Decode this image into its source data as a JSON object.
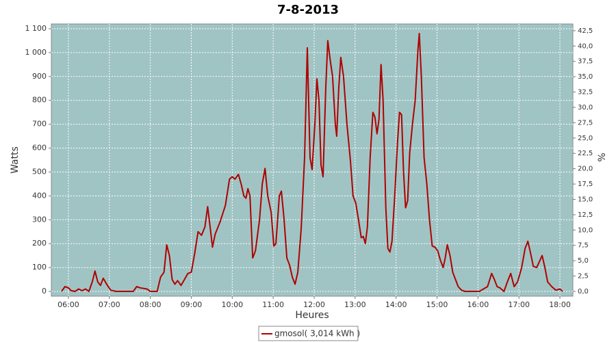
{
  "chart_data": {
    "type": "line",
    "title": "7-8-2013",
    "x_label": "Heures",
    "y_label": "Watts",
    "y2_label": "%",
    "xlim": [
      "05:35",
      "18:19"
    ],
    "xticks": [
      "06:00",
      "07:00",
      "08:00",
      "09:00",
      "10:00",
      "11:00",
      "12:00",
      "13:00",
      "14:00",
      "15:00",
      "16:00",
      "17:00",
      "18:00"
    ],
    "ylim": [
      -20,
      1120
    ],
    "yticks": [
      0,
      100,
      200,
      300,
      400,
      500,
      600,
      700,
      800,
      900,
      {
        "value": 1000,
        "label": "1 000"
      },
      {
        "value": 1100,
        "label": "1 100"
      }
    ],
    "y2lim": [
      -0.78,
      43.6
    ],
    "y2ticks": [
      {
        "value": 0,
        "label": "0,0"
      },
      {
        "value": 2.5,
        "label": "2,5"
      },
      {
        "value": 5,
        "label": "5,0"
      },
      {
        "value": 7.5,
        "label": "7,5"
      },
      {
        "value": 10,
        "label": "10,0"
      },
      {
        "value": 12.5,
        "label": "12,5"
      },
      {
        "value": 15,
        "label": "15,0"
      },
      {
        "value": 17.5,
        "label": "17,5"
      },
      {
        "value": 20,
        "label": "20,0"
      },
      {
        "value": 22.5,
        "label": "22,5"
      },
      {
        "value": 25,
        "label": "25,0"
      },
      {
        "value": 27.5,
        "label": "27,5"
      },
      {
        "value": 30,
        "label": "30,0"
      },
      {
        "value": 32.5,
        "label": "32,5"
      },
      {
        "value": 35,
        "label": "35,0"
      },
      {
        "value": 37.5,
        "label": "37,5"
      },
      {
        "value": 40,
        "label": "40,0"
      },
      {
        "value": 42.5,
        "label": "42,5"
      }
    ],
    "grid": true,
    "legend": "bottom",
    "x": [
      "05:50",
      "05:55",
      "06:00",
      "06:04",
      "06:10",
      "06:15",
      "06:20",
      "06:25",
      "06:30",
      "06:35",
      "06:39",
      "06:43",
      "06:47",
      "06:51",
      "06:56",
      "07:02",
      "07:10",
      "07:35",
      "07:40",
      "07:45",
      "07:55",
      "08:00",
      "08:10",
      "08:15",
      "08:20",
      "08:24",
      "08:28",
      "08:32",
      "08:36",
      "08:40",
      "08:45",
      "08:50",
      "08:55",
      "09:00",
      "09:05",
      "09:10",
      "09:15",
      "09:20",
      "09:24",
      "09:28",
      "09:31",
      "09:35",
      "09:42",
      "09:50",
      "09:56",
      "10:00",
      "10:04",
      "10:09",
      "10:13",
      "10:17",
      "10:20",
      "10:23",
      "10:26",
      "10:30",
      "10:34",
      "10:40",
      "10:44",
      "10:48",
      "10:52",
      "10:57",
      "11:01",
      "11:04",
      "11:09",
      "11:12",
      "11:16",
      "11:20",
      "11:24",
      "11:28",
      "11:32",
      "11:36",
      "11:41",
      "11:46",
      "11:50",
      "11:54",
      "11:57",
      "12:01",
      "12:04",
      "12:07",
      "12:10",
      "12:13",
      "12:17",
      "12:20",
      "12:23",
      "12:27",
      "12:31",
      "12:33",
      "12:36",
      "12:39",
      "12:43",
      "12:48",
      "12:53",
      "12:57",
      "13:01",
      "13:05",
      "13:09",
      "13:12",
      "13:15",
      "13:18",
      "13:22",
      "13:26",
      "13:29",
      "13:32",
      "13:35",
      "13:38",
      "13:41",
      "13:45",
      "13:48",
      "13:51",
      "13:54",
      "13:58",
      "14:02",
      "14:05",
      "14:08",
      "14:11",
      "14:14",
      "14:17",
      "14:20",
      "14:24",
      "14:28",
      "14:32",
      "14:34",
      "14:37",
      "14:41",
      "14:45",
      "14:49",
      "14:53",
      "14:57",
      "15:01",
      "15:05",
      "15:09",
      "15:12",
      "15:15",
      "15:19",
      "15:23",
      "15:27",
      "15:31",
      "15:36",
      "15:41",
      "16:02",
      "16:08",
      "16:14",
      "16:20",
      "16:24",
      "16:28",
      "16:32",
      "16:38",
      "16:43",
      "16:48",
      "16:53",
      "16:58",
      "17:04",
      "17:09",
      "17:13",
      "17:17",
      "17:21",
      "17:26",
      "17:30",
      "17:34",
      "17:38",
      "17:42",
      "17:48",
      "17:54",
      "18:00",
      "18:04"
    ],
    "series": [
      {
        "name": "gmosol( 3,014 kWh )",
        "color": "#b00000",
        "values": [
          0,
          20,
          15,
          3,
          0,
          10,
          3,
          10,
          0,
          40,
          85,
          40,
          25,
          55,
          30,
          5,
          0,
          0,
          20,
          15,
          10,
          0,
          0,
          60,
          80,
          195,
          150,
          50,
          30,
          45,
          25,
          50,
          75,
          80,
          160,
          250,
          235,
          270,
          355,
          260,
          185,
          240,
          290,
          360,
          470,
          480,
          470,
          490,
          450,
          400,
          390,
          430,
          400,
          140,
          170,
          300,
          450,
          515,
          400,
          330,
          190,
          200,
          400,
          420,
          300,
          140,
          110,
          60,
          30,
          80,
          260,
          560,
          1020,
          560,
          510,
          700,
          890,
          800,
          530,
          480,
          850,
          1050,
          980,
          900,
          700,
          650,
          850,
          980,
          900,
          700,
          550,
          400,
          370,
          300,
          225,
          230,
          200,
          270,
          560,
          750,
          730,
          660,
          720,
          950,
          800,
          350,
          180,
          165,
          210,
          400,
          620,
          750,
          740,
          500,
          350,
          380,
          580,
          700,
          800,
          1010,
          1080,
          900,
          560,
          450,
          300,
          190,
          185,
          170,
          130,
          100,
          140,
          195,
          150,
          80,
          50,
          20,
          5,
          0,
          0,
          10,
          20,
          75,
          50,
          20,
          15,
          0,
          40,
          75,
          20,
          40,
          100,
          180,
          210,
          160,
          105,
          100,
          125,
          150,
          100,
          40,
          20,
          5,
          10,
          0
        ]
      }
    ]
  }
}
